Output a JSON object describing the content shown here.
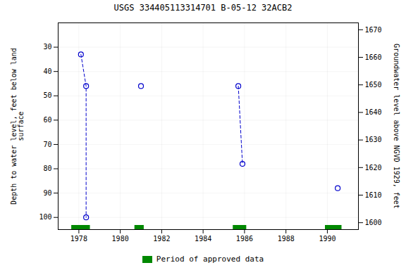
{
  "chart_data": {
    "type": "line",
    "title": "USGS 334405113314701 B-05-12 32ACB2",
    "ylabel": "Depth to water level, feet below land\nsurface",
    "y2label": "Groundwater level above NGVD 1929, feet",
    "xlim": [
      1977.0,
      1991.5
    ],
    "xticks": [
      1978,
      1980,
      1982,
      1984,
      1986,
      1988,
      1990
    ],
    "ylim": [
      105,
      20
    ],
    "yticks": [
      30,
      40,
      50,
      60,
      70,
      80,
      90,
      100
    ],
    "y2lim": [
      1597.5,
      1672.5
    ],
    "y2ticks": [
      1600,
      1610,
      1620,
      1630,
      1640,
      1650,
      1660,
      1670
    ],
    "grid": true,
    "legend": "bottom",
    "series": [
      {
        "x": [
          1978.1,
          1978.35,
          1978.35
        ],
        "values": [
          33,
          46,
          100
        ],
        "color": "#0000cc",
        "marker": "circle",
        "line_style": "dashed"
      },
      {
        "x": [
          1981.0
        ],
        "values": [
          46
        ],
        "color": "#0000cc",
        "marker": "circle",
        "line_style": "none"
      },
      {
        "x": [
          1985.7,
          1985.9
        ],
        "values": [
          46,
          78
        ],
        "color": "#0000cc",
        "marker": "circle",
        "line_style": "dashed"
      },
      {
        "x": [
          1990.5
        ],
        "values": [
          88
        ],
        "color": "#0000cc",
        "marker": "circle",
        "line_style": "none"
      }
    ],
    "approved_periods": {
      "name": "Period of approved data",
      "color": "#008800",
      "periods": [
        [
          1977.65,
          1978.55
        ],
        [
          1980.7,
          1981.15
        ],
        [
          1985.45,
          1986.1
        ],
        [
          1989.9,
          1990.7
        ]
      ]
    }
  }
}
